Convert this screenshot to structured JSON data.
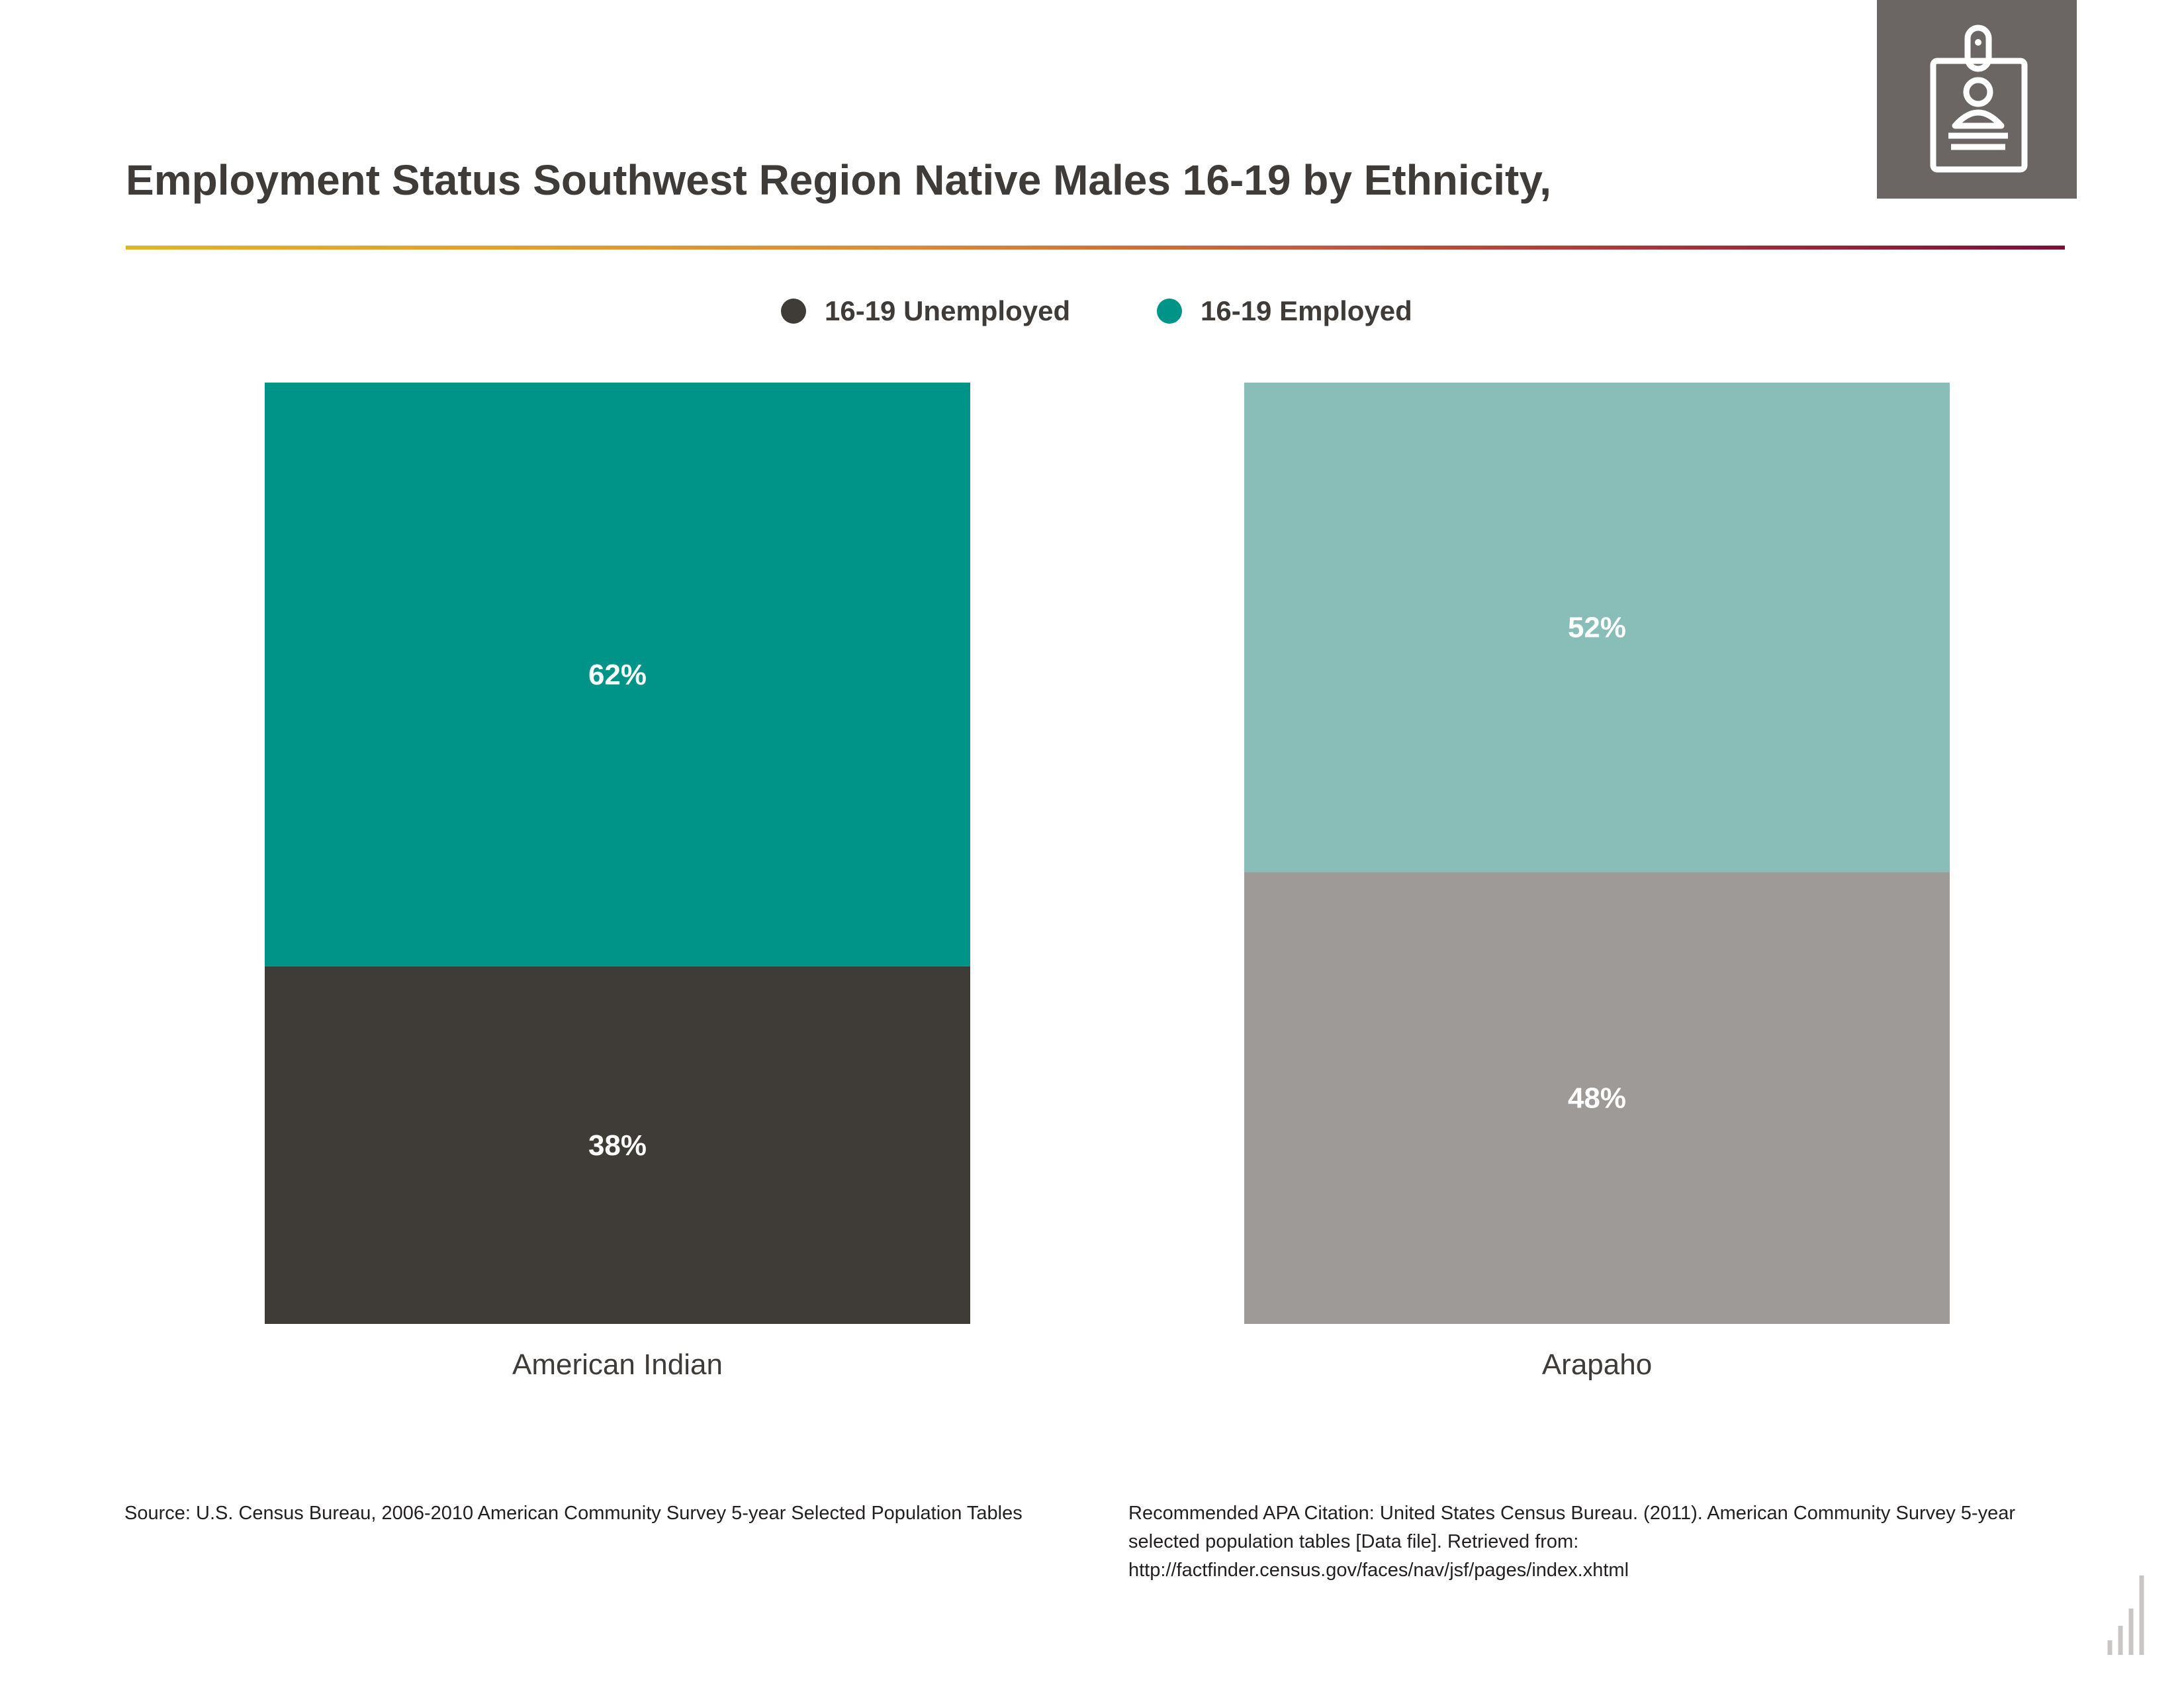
{
  "title": "Employment Status Southwest Region Native Males 16-19 by Ethnicity,",
  "badge_icon": "id-badge-person-icon",
  "colors": {
    "title_text": "#3f3b38",
    "unemployed_legend": "#3f3c38",
    "employed_legend": "#009488",
    "american_indian_unemployed": "#3f3c38",
    "american_indian_employed": "#009488",
    "arapaho_unemployed": "#9e9a98",
    "arapaho_employed": "#88bdb8",
    "badge_bg": "#6b6563"
  },
  "legend": [
    {
      "label": "16-19 Unemployed",
      "color": "#3f3c38"
    },
    {
      "label": "16-19 Employed",
      "color": "#009488"
    }
  ],
  "chart_data": {
    "type": "bar",
    "stacked": true,
    "categories": [
      "American Indian",
      "Arapaho"
    ],
    "series": [
      {
        "name": "16-19 Unemployed",
        "values": [
          38,
          48
        ],
        "labels": [
          "38%",
          "48%"
        ]
      },
      {
        "name": "16-19 Employed",
        "values": [
          62,
          52
        ],
        "labels": [
          "62%",
          "52%"
        ]
      }
    ],
    "ylim": [
      0,
      100
    ],
    "grid": false,
    "legend_position": "top-center"
  },
  "source": "Source:  U.S. Census Bureau, 2006-2010 American Community Survey 5-year Selected Population Tables",
  "citation": "Recommended APA Citation: United States Census Bureau. (2011). American Community Survey 5-year selected population tables [Data file]. Retrieved from: http://factfinder.census.gov/faces/nav/jsf/pages/index.xhtml",
  "corner_icon": "bar-chart-icon"
}
